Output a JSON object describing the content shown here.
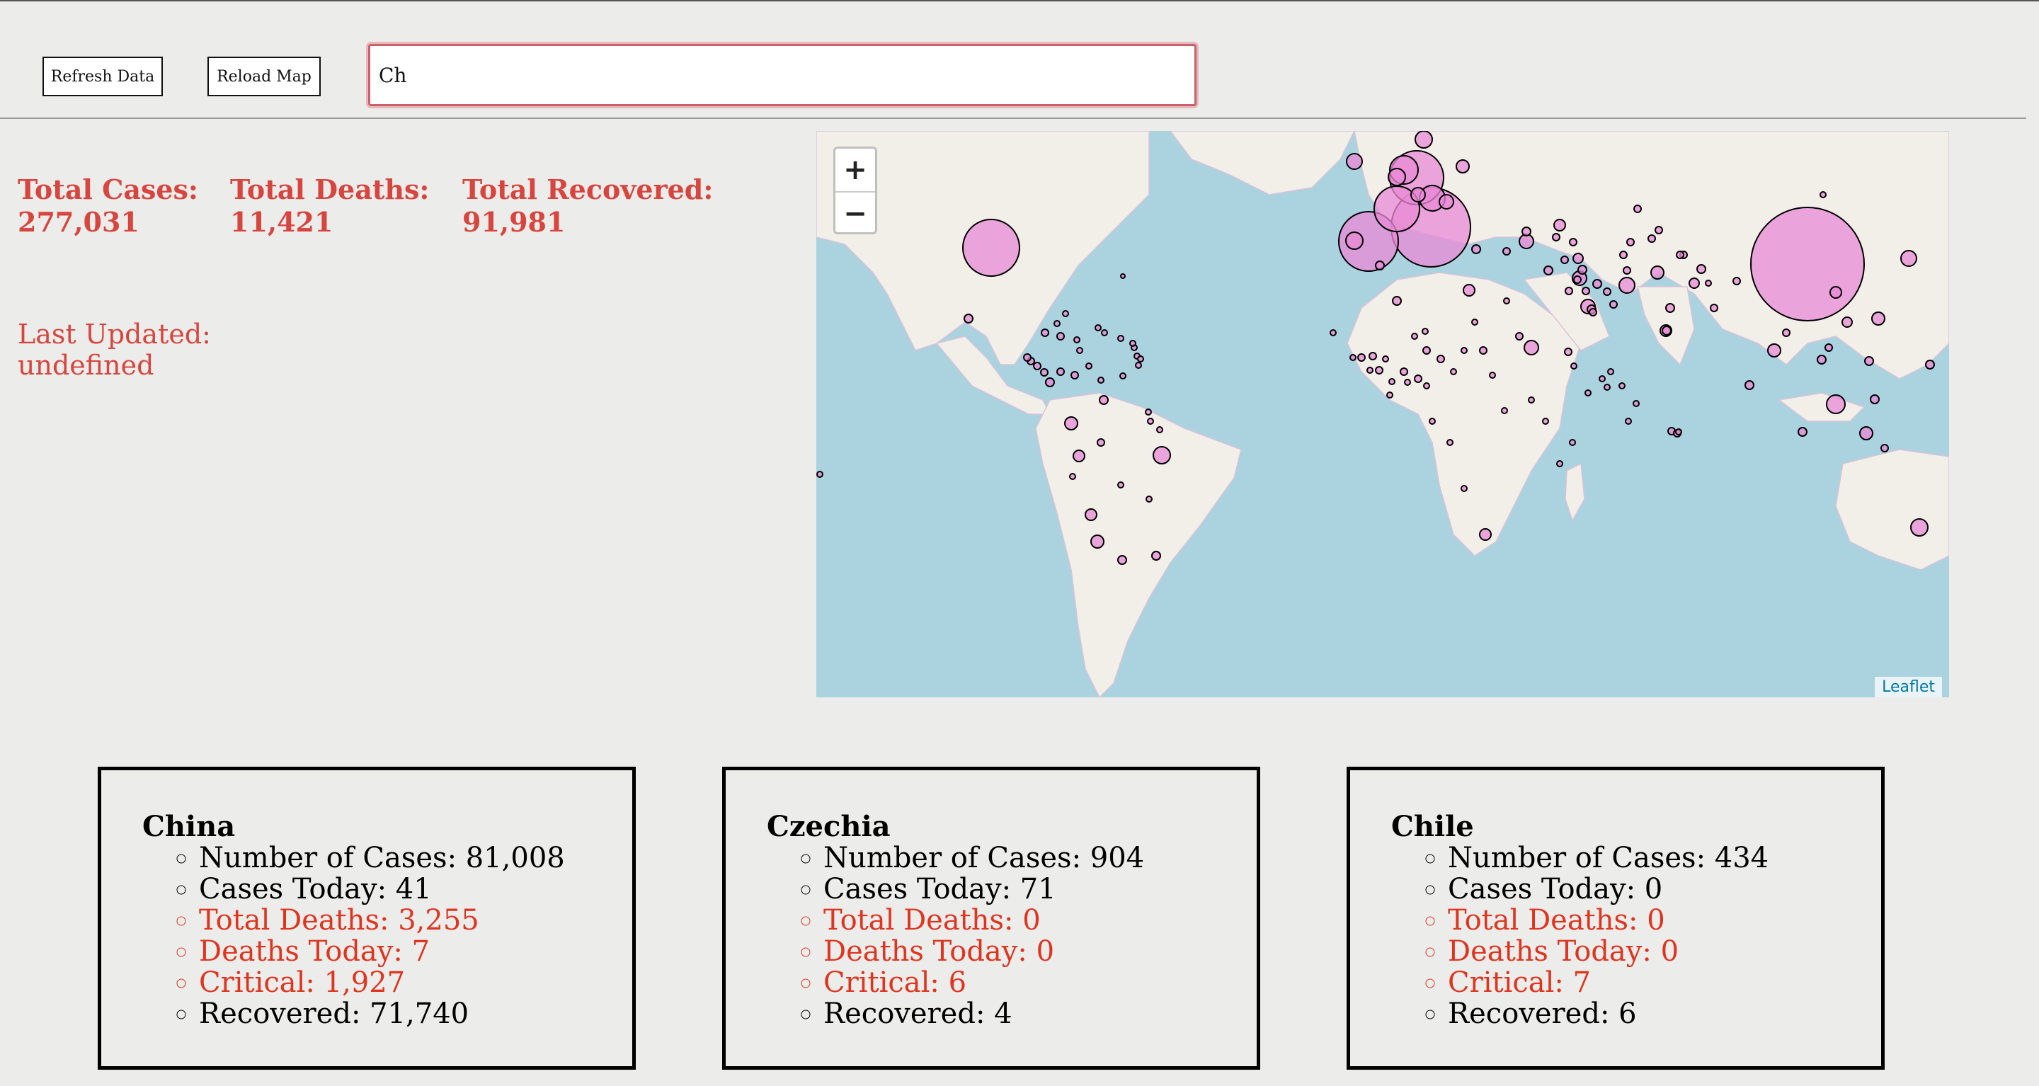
{
  "toolbar": {
    "refresh_label": "Refresh Data",
    "reload_label": "Reload Map",
    "search_value": "Ch"
  },
  "totals": {
    "cases_label": "Total Cases:",
    "cases_value": "277,031",
    "deaths_label": "Total Deaths:",
    "deaths_value": "11,421",
    "recovered_label": "Total Recovered:",
    "recovered_value": "91,981"
  },
  "last_updated": {
    "label": "Last Updated:",
    "value": "undefined"
  },
  "map": {
    "zoom_in": "+",
    "zoom_out": "−",
    "attribution": "Leaflet",
    "colors": {
      "water": "#aad3df",
      "land": "#f2efe9",
      "marker": "#e88ad6"
    }
  },
  "cards": [
    {
      "country": "China",
      "items": [
        {
          "text": "Number of Cases: 81,008",
          "red": false
        },
        {
          "text": "Cases Today: 41",
          "red": false
        },
        {
          "text": "Total Deaths: 3,255",
          "red": true
        },
        {
          "text": "Deaths Today: 7",
          "red": true
        },
        {
          "text": "Critical: 1,927",
          "red": true
        },
        {
          "text": "Recovered: 71,740",
          "red": false
        }
      ]
    },
    {
      "country": "Czechia",
      "items": [
        {
          "text": "Number of Cases: 904",
          "red": false
        },
        {
          "text": "Cases Today: 71",
          "red": false
        },
        {
          "text": "Total Deaths: 0",
          "red": true
        },
        {
          "text": "Deaths Today: 0",
          "red": true
        },
        {
          "text": "Critical: 6",
          "red": true
        },
        {
          "text": "Recovered: 4",
          "red": false
        }
      ]
    },
    {
      "country": "Chile",
      "items": [
        {
          "text": "Number of Cases: 434",
          "red": false
        },
        {
          "text": "Cases Today: 0",
          "red": false
        },
        {
          "text": "Total Deaths: 0",
          "red": true
        },
        {
          "text": "Deaths Today: 0",
          "red": true
        },
        {
          "text": "Critical: 7",
          "red": true
        },
        {
          "text": "Recovered: 6",
          "red": false
        }
      ]
    }
  ]
}
